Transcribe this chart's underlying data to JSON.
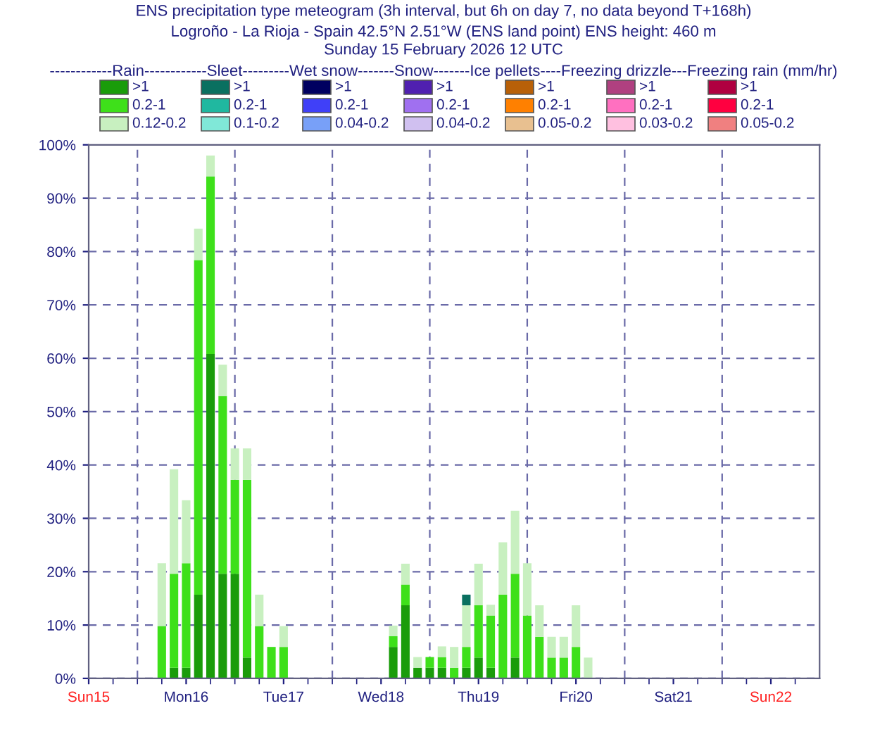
{
  "chart_data": {
    "type": "bar",
    "stacked": true,
    "title": "ENS precipitation type meteogram (3h interval, but 6h on day 7, no data beyond T+168h)",
    "subtitle": "Logroño - La Rioja - Spain 42.5°N 2.51°W (ENS land point) ENS height: 460 m\nSunday 15 February 2026 12 UTC",
    "legend_title": "------------Rain------------Sleet---------Wet snow-------Snow-------Ice pellets----Freezing drizzle---Freezing rain (mm/hr)",
    "legend": "top",
    "x": [
      "2026-02-15T18:00",
      "2026-02-15T21:00",
      "2026-02-16T00:00",
      "2026-02-16T03:00",
      "2026-02-16T06:00",
      "2026-02-16T09:00",
      "2026-02-16T12:00",
      "2026-02-16T15:00",
      "2026-02-16T18:00",
      "2026-02-16T21:00",
      "2026-02-17T00:00",
      "2026-02-18T03:00",
      "2026-02-18T06:00",
      "2026-02-18T09:00",
      "2026-02-18T12:00",
      "2026-02-18T15:00",
      "2026-02-18T18:00",
      "2026-02-18T21:00",
      "2026-02-19T00:00",
      "2026-02-19T03:00",
      "2026-02-19T06:00",
      "2026-02-19T09:00",
      "2026-02-19T12:00",
      "2026-02-19T15:00",
      "2026-02-19T18:00",
      "2026-02-19T21:00",
      "2026-02-20T00:00",
      "2026-02-20T03:00"
    ],
    "series": [
      {
        "name": ">1",
        "color": "#1a9c0a",
        "values": [
          0,
          2.0,
          2.0,
          15.7,
          60.8,
          19.6,
          19.6,
          3.9,
          0,
          0,
          0,
          5.9,
          13.7,
          2.0,
          2.0,
          2.0,
          0,
          2.0,
          3.9,
          2.0,
          0,
          3.9,
          0,
          0,
          0,
          0,
          0,
          0
        ]
      },
      {
        "name": "0.2-1",
        "color": "#3ee01a",
        "values": [
          9.8,
          17.6,
          19.6,
          62.7,
          33.3,
          33.3,
          17.6,
          33.3,
          9.8,
          5.9,
          5.9,
          2.0,
          3.9,
          0,
          2.0,
          2.0,
          2.0,
          3.9,
          9.8,
          9.8,
          15.7,
          15.7,
          11.8,
          7.8,
          3.9,
          3.9,
          5.9,
          0
        ]
      },
      {
        "name": "0.12-0.2",
        "color": "#c8f0c0",
        "values": [
          11.8,
          19.6,
          11.8,
          5.9,
          3.9,
          5.9,
          5.9,
          5.9,
          5.9,
          0,
          3.9,
          2.0,
          3.9,
          2.0,
          0,
          2.0,
          3.9,
          7.8,
          7.8,
          2.0,
          9.8,
          11.8,
          9.8,
          5.9,
          3.9,
          3.9,
          7.8,
          3.9
        ]
      },
      {
        "name": ">1",
        "color": "#0a7060",
        "values": [
          0,
          0,
          0,
          0,
          0,
          0,
          0,
          0,
          0,
          0,
          0,
          0,
          0,
          0,
          0,
          0,
          0,
          2.0,
          0,
          0,
          0,
          0,
          0,
          0,
          0,
          0,
          0,
          0
        ]
      },
      {
        "name": "0.2-1",
        "color": "#20b8a0",
        "values": [
          0,
          0,
          0,
          0,
          0,
          0,
          0,
          0,
          0,
          0,
          0,
          0,
          0,
          0,
          0,
          0,
          0,
          0,
          0,
          0,
          0,
          0,
          0,
          0,
          0,
          0,
          0,
          0
        ]
      },
      {
        "name": "0.1-0.2",
        "color": "#80e8d8",
        "values": [
          0,
          0,
          0,
          0,
          0,
          0,
          0,
          0,
          0,
          0,
          0,
          0,
          0,
          0,
          0,
          0,
          0,
          0,
          0,
          0,
          0,
          0,
          0,
          0,
          0,
          0,
          0,
          0
        ]
      },
      {
        "name": ">1",
        "color": "#000060",
        "values": [
          0,
          0,
          0,
          0,
          0,
          0,
          0,
          0,
          0,
          0,
          0,
          0,
          0,
          0,
          0,
          0,
          0,
          0,
          0,
          0,
          0,
          0,
          0,
          0,
          0,
          0,
          0,
          0
        ]
      },
      {
        "name": "0.2-1",
        "color": "#4040f8",
        "values": [
          0,
          0,
          0,
          0,
          0,
          0,
          0,
          0,
          0,
          0,
          0,
          0,
          0,
          0,
          0,
          0,
          0,
          0,
          0,
          0,
          0,
          0,
          0,
          0,
          0,
          0,
          0,
          0
        ]
      },
      {
        "name": "0.04-0.2",
        "color": "#78a0f8",
        "values": [
          0,
          0,
          0,
          0,
          0,
          0,
          0,
          0,
          0,
          0,
          0,
          0,
          0,
          0,
          0,
          0,
          0,
          0,
          0,
          0,
          0,
          0,
          0,
          0,
          0,
          0,
          0,
          0
        ]
      },
      {
        "name": ">1",
        "color": "#5020b0",
        "values": [
          0,
          0,
          0,
          0,
          0,
          0,
          0,
          0,
          0,
          0,
          0,
          0,
          0,
          0,
          0,
          0,
          0,
          0,
          0,
          0,
          0,
          0,
          0,
          0,
          0,
          0,
          0,
          0
        ]
      },
      {
        "name": "0.2-1",
        "color": "#a070f0",
        "values": [
          0,
          0,
          0,
          0,
          0,
          0,
          0,
          0,
          0,
          0,
          0,
          0,
          0,
          0,
          0,
          0,
          0,
          0,
          0,
          0,
          0,
          0,
          0,
          0,
          0,
          0,
          0,
          0
        ]
      },
      {
        "name": "0.04-0.2",
        "color": "#d0c0f0",
        "values": [
          0,
          0,
          0,
          0,
          0,
          0,
          0,
          0,
          0,
          0,
          0,
          0,
          0,
          0,
          0,
          0,
          0,
          0,
          0,
          0,
          0,
          0,
          0,
          0,
          0,
          0,
          0,
          0
        ]
      },
      {
        "name": ">1",
        "color": "#b86008",
        "values": [
          0,
          0,
          0,
          0,
          0,
          0,
          0,
          0,
          0,
          0,
          0,
          0,
          0,
          0,
          0,
          0,
          0,
          0,
          0,
          0,
          0,
          0,
          0,
          0,
          0,
          0,
          0,
          0
        ]
      },
      {
        "name": "0.2-1",
        "color": "#ff8000",
        "values": [
          0,
          0,
          0,
          0,
          0,
          0,
          0,
          0,
          0,
          0,
          0,
          0,
          0,
          0,
          0,
          0,
          0,
          0,
          0,
          0,
          0,
          0,
          0,
          0,
          0,
          0,
          0,
          0
        ]
      },
      {
        "name": "0.05-0.2",
        "color": "#e8c090",
        "values": [
          0,
          0,
          0,
          0,
          0,
          0,
          0,
          0,
          0,
          0,
          0,
          0,
          0,
          0,
          0,
          0,
          0,
          0,
          0,
          0,
          0,
          0,
          0,
          0,
          0,
          0,
          0,
          0
        ]
      },
      {
        "name": ">1",
        "color": "#b04080",
        "values": [
          0,
          0,
          0,
          0,
          0,
          0,
          0,
          0,
          0,
          0,
          0,
          0,
          0,
          0,
          0,
          0,
          0,
          0,
          0,
          0,
          0,
          0,
          0,
          0,
          0,
          0,
          0,
          0
        ]
      },
      {
        "name": "0.2-1",
        "color": "#ff70c0",
        "values": [
          0,
          0,
          0,
          0,
          0,
          0,
          0,
          0,
          0,
          0,
          0,
          0,
          0,
          0,
          0,
          0,
          0,
          0,
          0,
          0,
          0,
          0,
          0,
          0,
          0,
          0,
          0,
          0
        ]
      },
      {
        "name": "0.03-0.2",
        "color": "#ffc0e0",
        "values": [
          0,
          0,
          0,
          0,
          0,
          0,
          0,
          0,
          0,
          0,
          0,
          0,
          0,
          0,
          0,
          0,
          0,
          0,
          0,
          0,
          0,
          0,
          0,
          0,
          0,
          0,
          0,
          0
        ]
      },
      {
        "name": ">1",
        "color": "#b00040",
        "values": [
          0,
          0,
          0,
          0,
          0,
          0,
          0,
          0,
          0,
          0,
          0,
          0,
          0,
          0,
          0,
          0,
          0,
          0,
          0,
          0,
          0,
          0,
          0,
          0,
          0,
          0,
          0,
          0
        ]
      },
      {
        "name": "0.2-1",
        "color": "#ff0040",
        "values": [
          0,
          0,
          0,
          0,
          0,
          0,
          0,
          0,
          0,
          0,
          0,
          0,
          0,
          0,
          0,
          0,
          0,
          0,
          0,
          0,
          0,
          0,
          0,
          0,
          0,
          0,
          0,
          0
        ]
      },
      {
        "name": "0.05-0.2",
        "color": "#f08080",
        "values": [
          0,
          0,
          0,
          0,
          0,
          0,
          0,
          0,
          0,
          0,
          0,
          0,
          0,
          0,
          0,
          0,
          0,
          0,
          0,
          0,
          0,
          0,
          0,
          0,
          0,
          0,
          0,
          0
        ]
      }
    ],
    "xlim": [
      "2026-02-15T00:00",
      "2026-02-22T12:00"
    ],
    "xticks": [
      {
        "value": "2026-02-15",
        "label": "Sun15"
      },
      {
        "value": "2026-02-16",
        "label": "Mon16"
      },
      {
        "value": "2026-02-17",
        "label": "Tue17"
      },
      {
        "value": "2026-02-18",
        "label": "Wed18"
      },
      {
        "value": "2026-02-19",
        "label": "Thu19"
      },
      {
        "value": "2026-02-20",
        "label": "Fri20"
      },
      {
        "value": "2026-02-21",
        "label": "Sat21"
      },
      {
        "value": "2026-02-22",
        "label": "Sun22"
      }
    ],
    "ylim": [
      0,
      100
    ],
    "yticks": [
      {
        "value": 0,
        "label": "0%"
      },
      {
        "value": 10,
        "label": "10%"
      },
      {
        "value": 20,
        "label": "20%"
      },
      {
        "value": 30,
        "label": "30%"
      },
      {
        "value": 40,
        "label": "40%"
      },
      {
        "value": 50,
        "label": "50%"
      },
      {
        "value": 60,
        "label": "60%"
      },
      {
        "value": 70,
        "label": "70%"
      },
      {
        "value": 80,
        "label": "80%"
      },
      {
        "value": 90,
        "label": "90%"
      },
      {
        "value": 100,
        "label": "100%"
      }
    ],
    "grid": "y",
    "ref_lines": [
      {
        "axis": "x",
        "value": "2026-02-15T12:00",
        "color": "#6a6aa8",
        "line_style": "dashed"
      },
      {
        "axis": "x",
        "value": "2026-02-16T12:00",
        "color": "#6a6aa8",
        "line_style": "dashed"
      },
      {
        "axis": "x",
        "value": "2026-02-17T12:00",
        "color": "#6a6aa8",
        "line_style": "dashed"
      },
      {
        "axis": "x",
        "value": "2026-02-18T12:00",
        "color": "#6a6aa8",
        "line_style": "dashed"
      },
      {
        "axis": "x",
        "value": "2026-02-19T12:00",
        "color": "#6a6aa8",
        "line_style": "dashed"
      },
      {
        "axis": "x",
        "value": "2026-02-20T12:00",
        "color": "#6a6aa8",
        "line_style": "dashed"
      },
      {
        "axis": "x",
        "value": "2026-02-21T12:00",
        "color": "#6a6aa8",
        "line_style": "dashed"
      }
    ]
  }
}
